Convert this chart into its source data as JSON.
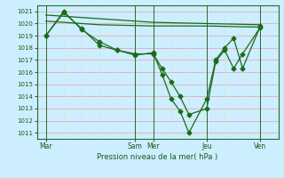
{
  "xlabel": "Pression niveau de la mer( hPa )",
  "bg_color": "#cceeff",
  "line_color": "#1a6b1a",
  "ylim": [
    1010.5,
    1021.5
  ],
  "yticks": [
    1011,
    1012,
    1013,
    1014,
    1015,
    1016,
    1017,
    1018,
    1019,
    1020,
    1021
  ],
  "xtick_labels": [
    "Mar",
    "Sam",
    "Mer",
    "Jeu",
    "Ven"
  ],
  "xtick_positions": [
    0.0,
    5.0,
    6.0,
    9.0,
    12.0
  ],
  "xlim": [
    -0.5,
    13.0
  ],
  "line1_x": [
    0,
    1,
    2,
    3,
    4,
    5,
    6,
    6.5,
    7,
    7.5,
    8,
    9,
    9.5,
    10,
    10.5,
    11,
    12
  ],
  "line1_y": [
    1019.0,
    1021.0,
    1019.5,
    1018.5,
    1017.8,
    1017.4,
    1017.6,
    1015.8,
    1013.8,
    1012.8,
    1011.0,
    1013.8,
    1017.0,
    1018.0,
    1018.8,
    1016.3,
    1019.8
  ],
  "line2_x": [
    0,
    1,
    2,
    3,
    4,
    5,
    6,
    6.5,
    7,
    7.5,
    8,
    9,
    9.5,
    10,
    10.5,
    11,
    12
  ],
  "line2_y": [
    1019.0,
    1020.9,
    1019.6,
    1018.2,
    1017.8,
    1017.5,
    1017.5,
    1016.3,
    1015.2,
    1014.0,
    1012.5,
    1013.0,
    1016.9,
    1017.8,
    1016.3,
    1017.5,
    1019.7
  ],
  "line3_x": [
    0,
    3,
    6,
    9,
    12
  ],
  "line3_y": [
    1020.2,
    1019.9,
    1019.8,
    1019.8,
    1019.7
  ],
  "line4_x": [
    0,
    3,
    6,
    9,
    12
  ],
  "line4_y": [
    1020.7,
    1020.4,
    1020.1,
    1020.0,
    1019.9
  ]
}
